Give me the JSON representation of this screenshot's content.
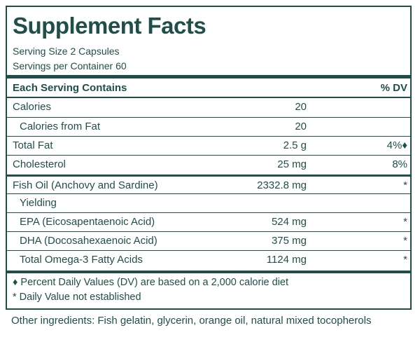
{
  "panel": {
    "title": "Supplement Facts",
    "serving_size": "Serving Size 2 Capsules",
    "servings_per_container": "Servings per Container 60",
    "header": {
      "name": "Each Serving Contains",
      "dv": "% DV"
    },
    "rows": [
      {
        "name": "Calories",
        "amount": "20"
      },
      {
        "name": "Calories from Fat",
        "amount": "20"
      },
      {
        "name": "Total Fat",
        "amount": "2.5 g",
        "dv": "4%♦"
      },
      {
        "name": "Cholesterol",
        "amount": "25 mg",
        "dv": "8%"
      },
      {
        "name": "Fish Oil (Anchovy and Sardine)",
        "amount": "2332.8 mg",
        "dv": "*"
      },
      {
        "name": "Yielding"
      },
      {
        "name": "EPA (Eicosapentaenoic Acid)",
        "amount": "524 mg",
        "dv": "*"
      },
      {
        "name": "DHA (Docosahexaenoic Acid)",
        "amount": "375 mg",
        "dv": "*"
      },
      {
        "name": "Total Omega-3 Fatty Acids",
        "amount": "1124 mg",
        "dv": "*"
      }
    ],
    "footnotes": [
      "♦ Percent Daily Values (DV) are based on a 2,000 calorie diet",
      "* Daily Value not established"
    ]
  },
  "other_ingredients": "Other ingredients:  Fish gelatin, glycerin, orange oil, natural mixed tocopherols"
}
